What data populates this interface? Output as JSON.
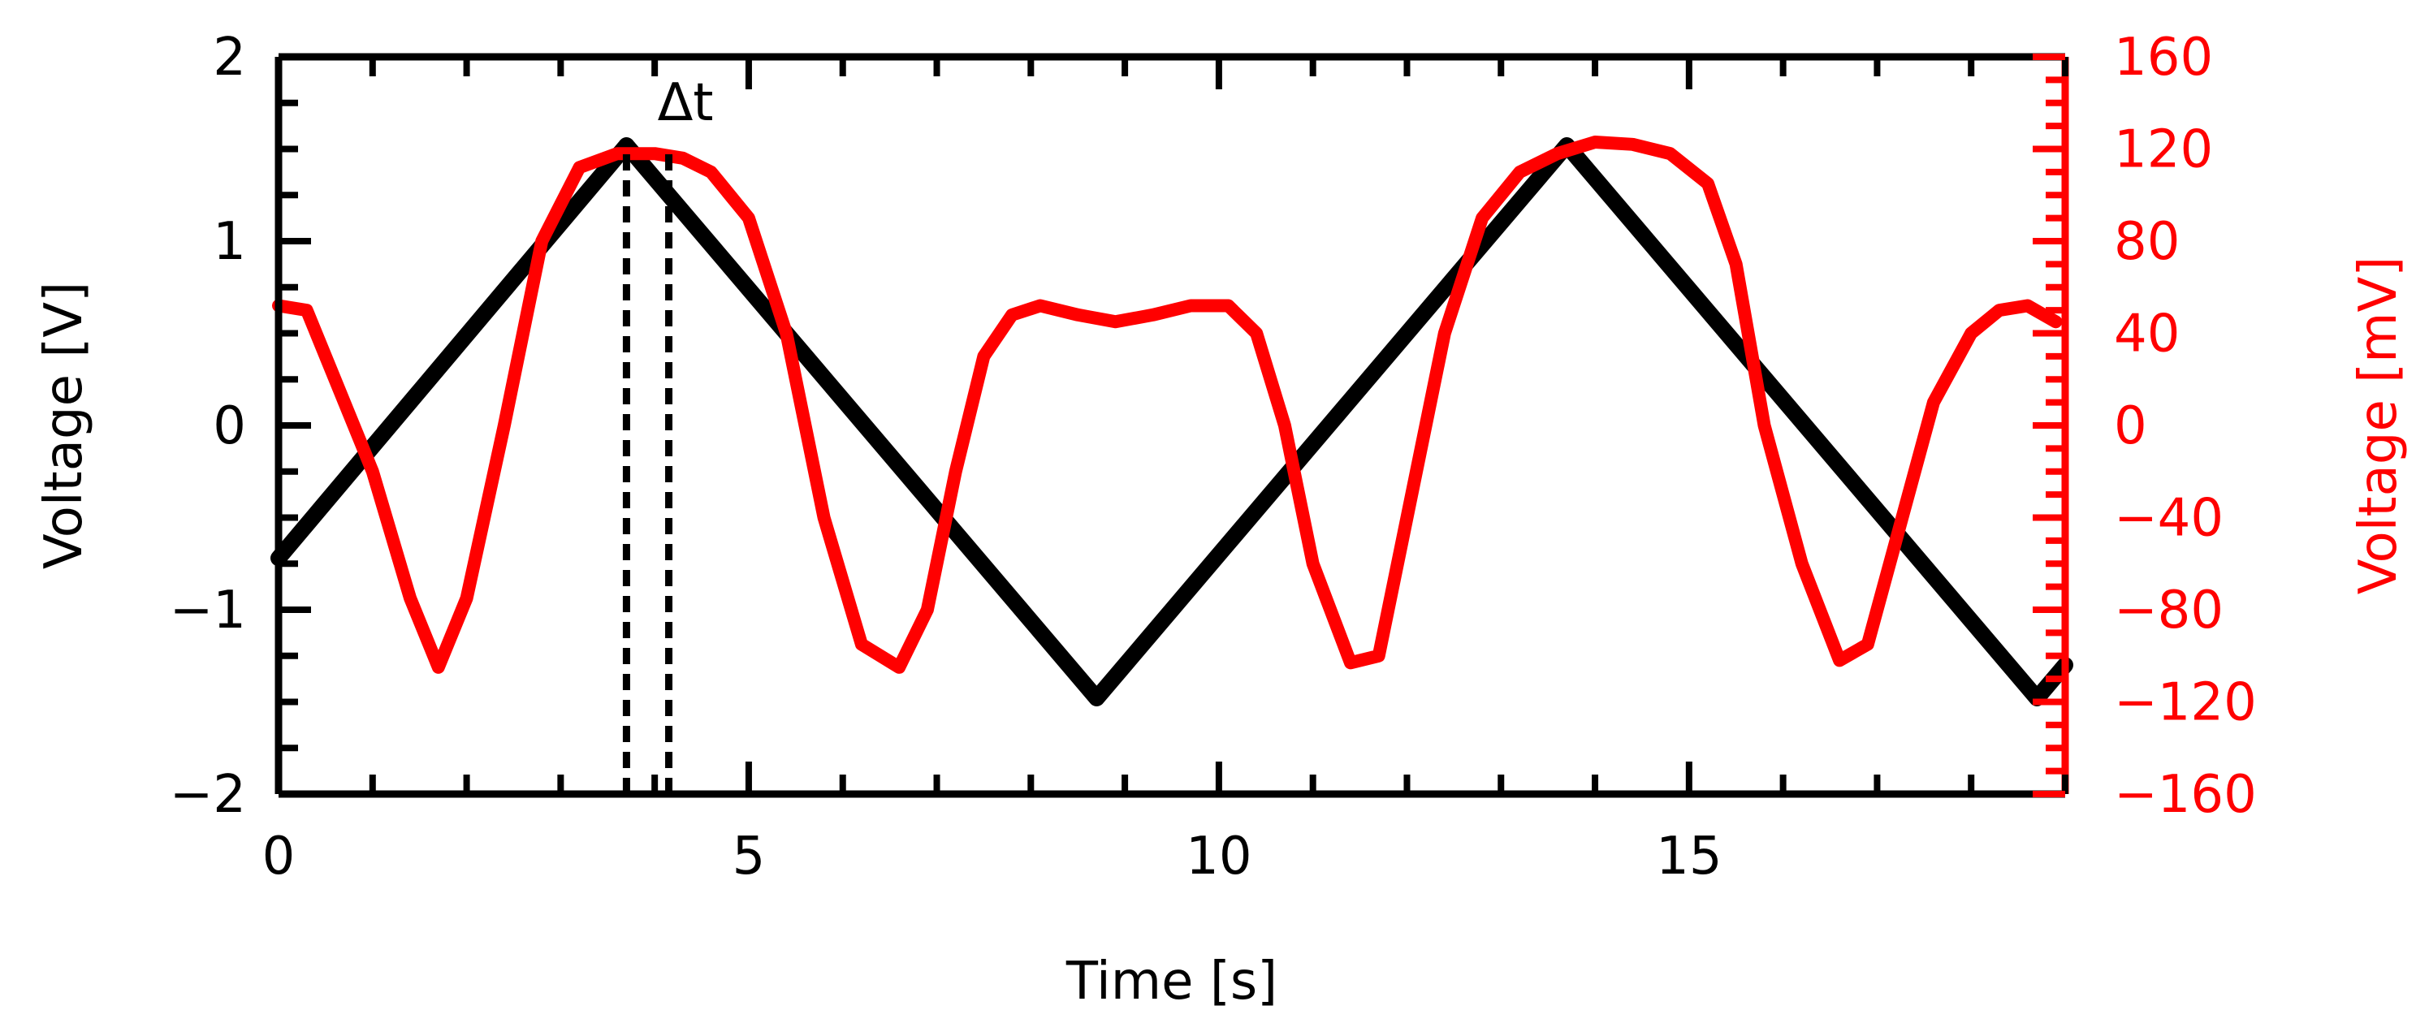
{
  "chart_data": {
    "type": "line",
    "title": "",
    "xlabel": "Time [s]",
    "ylabel_left": "Voltage [V]",
    "ylabel_right": "Voltage [mV]",
    "xlim": [
      0,
      19
    ],
    "ylim_left": [
      -2,
      2
    ],
    "ylim_right": [
      -160,
      160
    ],
    "x_ticks": [
      0,
      5,
      10,
      15
    ],
    "x_tick_labels": [
      "0",
      "5",
      "10",
      "15"
    ],
    "y_left_ticks": [
      -2,
      -1,
      0,
      1,
      2
    ],
    "y_left_tick_labels": [
      "−2",
      "−1",
      "0",
      "1",
      "2"
    ],
    "y_right_ticks": [
      -160,
      -120,
      -80,
      -40,
      0,
      40,
      80,
      120,
      160
    ],
    "y_right_tick_labels": [
      "−160",
      "−120",
      "−80",
      "−40",
      "0",
      "40",
      "80",
      "120",
      "160"
    ],
    "grid": false,
    "legend": "none",
    "colors": {
      "left_series": "#000000",
      "right_series": "#ff0000",
      "axis_left": "#000000",
      "axis_right": "#ff0000"
    },
    "series": [
      {
        "axis": "left",
        "color": "#000000",
        "x": [
          0.0,
          3.7,
          8.7,
          13.7,
          18.7,
          19.0
        ],
        "y": [
          -0.72,
          1.52,
          -1.48,
          1.52,
          -1.48,
          -1.3
        ]
      },
      {
        "axis": "right",
        "color": "#ff0000",
        "x": [
          0.0,
          0.3,
          0.6,
          1.0,
          1.4,
          1.7,
          2.0,
          2.4,
          2.8,
          3.2,
          3.6,
          4.0,
          4.3,
          4.6,
          5.0,
          5.4,
          5.8,
          6.2,
          6.6,
          6.9,
          7.2,
          7.5,
          7.8,
          8.1,
          8.5,
          8.9,
          9.3,
          9.7,
          10.1,
          10.4,
          10.7,
          11.0,
          11.4,
          11.7,
          12.0,
          12.4,
          12.8,
          13.2,
          13.6,
          14.0,
          14.4,
          14.8,
          15.2,
          15.5,
          15.8,
          16.2,
          16.6,
          16.9,
          17.2,
          17.6,
          18.0,
          18.3,
          18.6,
          18.9
        ],
        "y": [
          52,
          50,
          20,
          -20,
          -75,
          -105,
          -75,
          0,
          80,
          112,
          118,
          118,
          116,
          110,
          90,
          40,
          -40,
          -95,
          -105,
          -80,
          -20,
          30,
          48,
          52,
          48,
          45,
          48,
          52,
          52,
          40,
          0,
          -60,
          -103,
          -100,
          -40,
          40,
          90,
          110,
          118,
          123,
          122,
          118,
          105,
          70,
          0,
          -60,
          -102,
          -95,
          -50,
          10,
          40,
          50,
          52,
          45
        ]
      },
      {
        "axis": "left",
        "type": "marker-line",
        "label": "",
        "x": [
          3.7,
          4.15
        ]
      }
    ],
    "annotations": [
      {
        "text": "Δt",
        "x": 3.9,
        "y": 1.7
      }
    ]
  }
}
